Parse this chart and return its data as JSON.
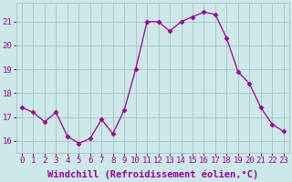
{
  "x": [
    0,
    1,
    2,
    3,
    4,
    5,
    6,
    7,
    8,
    9,
    10,
    11,
    12,
    13,
    14,
    15,
    16,
    17,
    18,
    19,
    20,
    21,
    22,
    23
  ],
  "y": [
    17.4,
    17.2,
    16.8,
    17.2,
    16.2,
    15.9,
    16.1,
    16.9,
    16.3,
    17.3,
    19.0,
    21.0,
    21.0,
    20.6,
    21.0,
    21.2,
    21.4,
    21.3,
    20.3,
    18.9,
    18.4,
    17.4,
    16.7,
    16.4
  ],
  "line_color": "#990099",
  "marker": "D",
  "marker_size": 2.5,
  "bg_color": "#cce8e8",
  "grid_color": "#aac8c8",
  "xlabel": "Windchill (Refroidissement éolien,°C)",
  "xlabel_color": "#990099",
  "xlabel_fontsize": 7.5,
  "ytick_labels": [
    "16",
    "17",
    "18",
    "19",
    "20",
    "21"
  ],
  "ytick_values": [
    16,
    17,
    18,
    19,
    20,
    21
  ],
  "ylim": [
    15.5,
    21.8
  ],
  "xlim": [
    -0.5,
    23.5
  ],
  "tick_color": "#990099",
  "tick_fontsize": 6.5
}
